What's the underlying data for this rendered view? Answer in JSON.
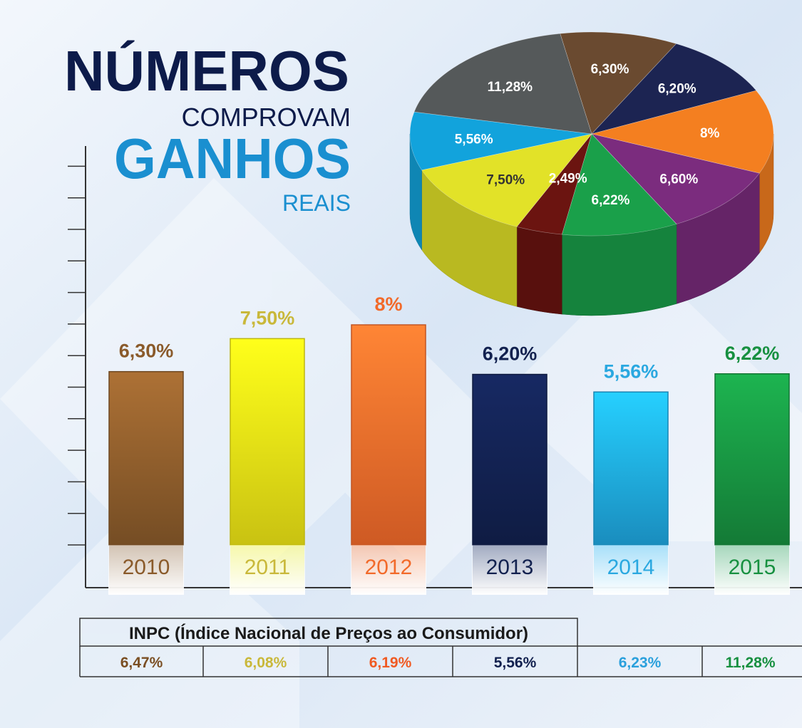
{
  "headline": {
    "line1": "NÚMEROS",
    "line2": "COMPROVAM",
    "line3": "GANHOS",
    "line4": "REAIS"
  },
  "chart_data": [
    {
      "type": "bar",
      "categories": [
        "2010",
        "2011",
        "2012",
        "2013",
        "2014",
        "2015"
      ],
      "values": [
        6.3,
        7.5,
        8,
        6.2,
        5.56,
        6.22
      ],
      "value_labels": [
        "6,30%",
        "7,50%",
        "8%",
        "6,20%",
        "5,56%",
        "6,22%"
      ],
      "colors": [
        "#8a5a2a",
        "#ece415",
        "#f26a2a",
        "#12214f",
        "#1ea6e0",
        "#179040"
      ],
      "label_colors": [
        "#8a5a2a",
        "#c9b83a",
        "#f26a2a",
        "#12214f",
        "#2aa8e0",
        "#179040"
      ],
      "ylim": [
        0,
        14.5
      ]
    },
    {
      "type": "pie",
      "values": [
        6.3,
        6.2,
        8,
        6.6,
        6.22,
        2.49,
        7.5,
        5.56,
        11.28
      ],
      "value_labels": [
        "6,30%",
        "6,20%",
        "8%",
        "6,60%",
        "6,22%",
        "2,49%",
        "7,50%",
        "5,56%",
        "11,28%"
      ],
      "colors": [
        "#6a4a30",
        "#1c2452",
        "#f47f20",
        "#7b2c7e",
        "#1aa04a",
        "#6b1410",
        "#e2e228",
        "#12a3dc",
        "#55595a"
      ]
    }
  ],
  "inpc": {
    "title": "INPC (Índice Nacional de Preços ao Consumidor)",
    "values": [
      "6,47%",
      "6,08%",
      "6,19%",
      "5,56%",
      "6,23%",
      "11,28%"
    ],
    "colors": [
      "#7a4e22",
      "#c9b83a",
      "#f05a22",
      "#12214f",
      "#2aa0dc",
      "#179040"
    ]
  }
}
